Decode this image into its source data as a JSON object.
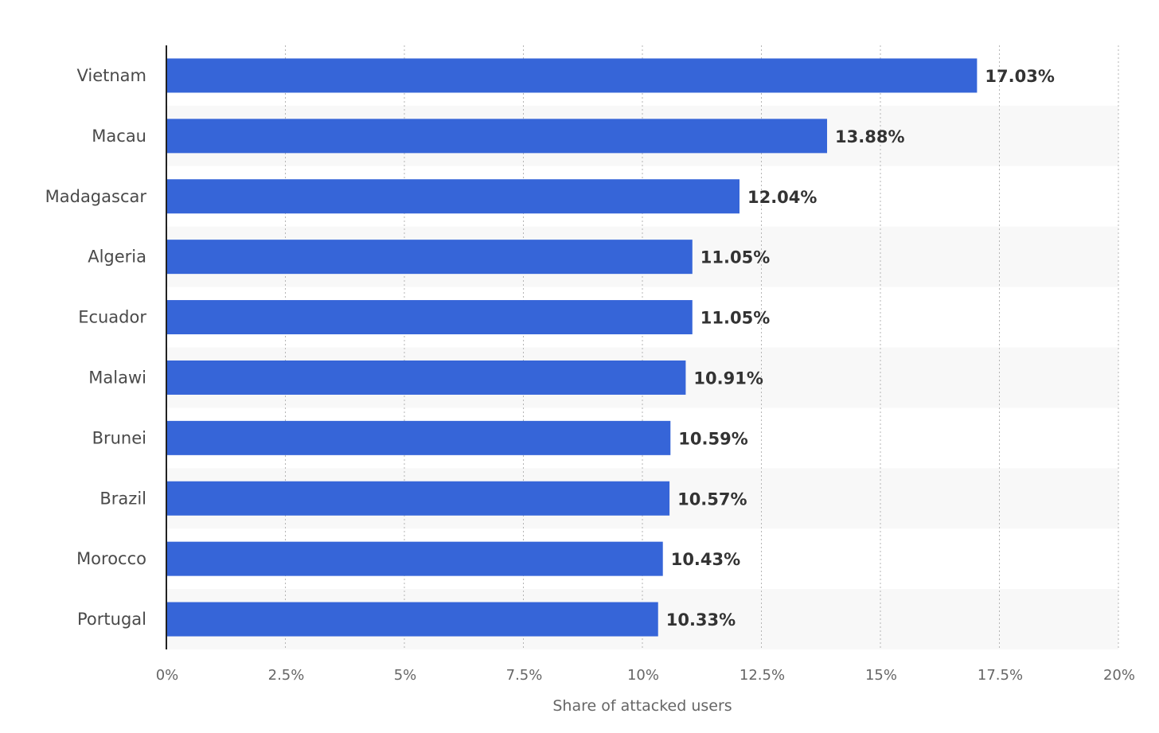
{
  "chart_data": {
    "type": "bar",
    "orientation": "horizontal",
    "title": "",
    "xlabel": "Share of attacked users",
    "ylabel": "",
    "categories": [
      "Vietnam",
      "Macau",
      "Madagascar",
      "Algeria",
      "Ecuador",
      "Malawi",
      "Brunei",
      "Brazil",
      "Morocco",
      "Portugal"
    ],
    "values": [
      17.03,
      13.88,
      12.04,
      11.05,
      11.05,
      10.91,
      10.59,
      10.57,
      10.43,
      10.33
    ],
    "value_labels": [
      "17.03%",
      "13.88%",
      "12.04%",
      "11.05%",
      "11.05%",
      "10.91%",
      "10.59%",
      "10.57%",
      "10.43%",
      "10.33%"
    ],
    "xlim": [
      0,
      20
    ],
    "ticks": [
      0,
      2.5,
      5,
      7.5,
      10,
      12.5,
      15,
      17.5,
      20
    ],
    "tick_labels": [
      "0%",
      "2.5%",
      "5%",
      "7.5%",
      "10%",
      "12.5%",
      "15%",
      "17.5%",
      "20%"
    ],
    "grid": true,
    "bar_color": "#3665d8",
    "band_color": "#f8f8f8"
  }
}
